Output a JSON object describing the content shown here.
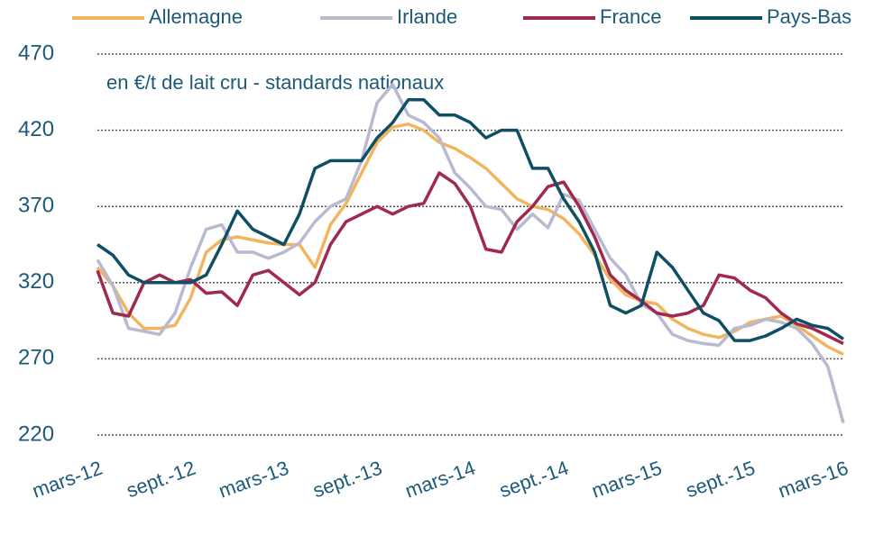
{
  "chart_data": {
    "type": "line",
    "subtitle": "en €/t de lait cru - standards nationaux",
    "categories": [
      "mars-12",
      null,
      null,
      null,
      null,
      null,
      "sept.-12",
      null,
      null,
      null,
      null,
      null,
      "mars-13",
      null,
      null,
      null,
      null,
      null,
      "sept.-13",
      null,
      null,
      null,
      null,
      null,
      "mars-14",
      null,
      null,
      null,
      null,
      null,
      "sept.-14",
      null,
      null,
      null,
      null,
      null,
      "mars-15",
      null,
      null,
      null,
      null,
      null,
      "sept.-15",
      null,
      null,
      null,
      null,
      null,
      "mars-16"
    ],
    "series": [
      {
        "name": "Allemagne",
        "color": "#f0b55e",
        "values": [
          330,
          318,
          300,
          290,
          290,
          292,
          310,
          340,
          348,
          350,
          348,
          346,
          345,
          345,
          330,
          358,
          372,
          392,
          412,
          422,
          424,
          420,
          412,
          408,
          402,
          395,
          385,
          375,
          370,
          368,
          362,
          352,
          338,
          322,
          312,
          308,
          306,
          296,
          290,
          286,
          284,
          288,
          294,
          296,
          298,
          292,
          285,
          278,
          273
        ]
      },
      {
        "name": "Irlande",
        "color": "#b9b9d1",
        "values": [
          335,
          318,
          290,
          288,
          286,
          300,
          330,
          355,
          358,
          340,
          340,
          336,
          340,
          346,
          360,
          370,
          375,
          400,
          438,
          450,
          430,
          425,
          415,
          392,
          382,
          370,
          368,
          355,
          365,
          356,
          378,
          374,
          355,
          336,
          325,
          306,
          300,
          286,
          282,
          280,
          279,
          290,
          292,
          296,
          294,
          290,
          280,
          265,
          228
        ]
      },
      {
        "name": "France",
        "color": "#a0294f",
        "values": [
          328,
          300,
          298,
          320,
          325,
          320,
          322,
          313,
          314,
          305,
          325,
          328,
          320,
          312,
          320,
          345,
          360,
          365,
          370,
          365,
          370,
          372,
          392,
          385,
          370,
          342,
          340,
          360,
          370,
          383,
          386,
          370,
          350,
          325,
          315,
          308,
          300,
          298,
          300,
          305,
          325,
          323,
          315,
          310,
          300,
          293,
          290,
          285,
          280
        ]
      },
      {
        "name": "Pays-Bas",
        "color": "#0f4f63",
        "values": [
          345,
          338,
          325,
          320,
          320,
          320,
          320,
          325,
          345,
          367,
          355,
          350,
          345,
          365,
          395,
          400,
          400,
          400,
          415,
          425,
          440,
          440,
          430,
          430,
          425,
          415,
          420,
          420,
          395,
          395,
          375,
          360,
          340,
          305,
          300,
          305,
          340,
          330,
          315,
          300,
          295,
          282,
          282,
          285,
          290,
          296,
          292,
          290,
          283
        ]
      }
    ],
    "ylim": [
      220,
      470
    ],
    "yticks": [
      220,
      270,
      320,
      370,
      420,
      470
    ],
    "grid": true
  }
}
